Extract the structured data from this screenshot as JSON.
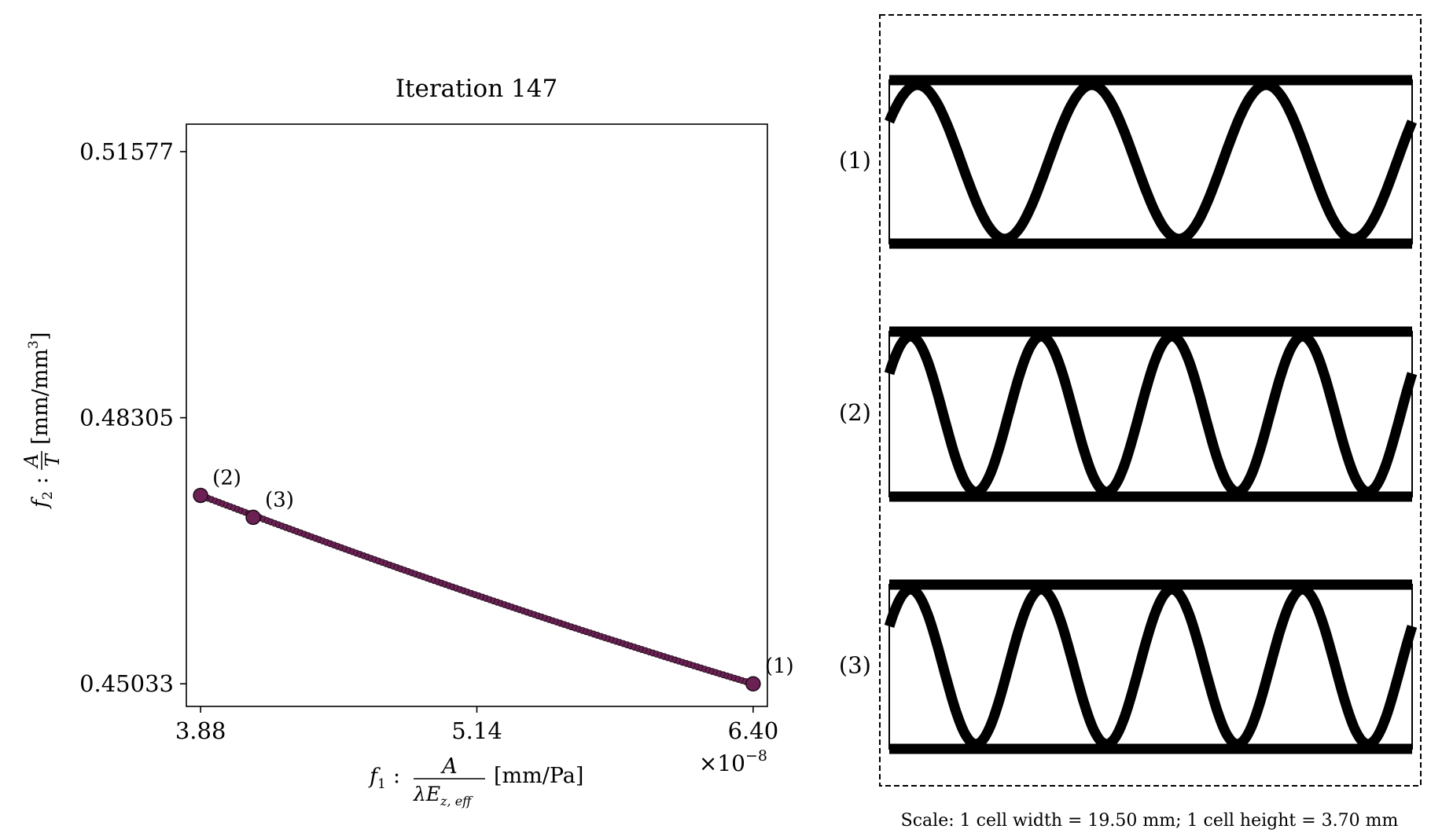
{
  "chart_data": {
    "type": "scatter",
    "title": "Iteration 147",
    "xlabel": {
      "prefix": "f",
      "sub": "1",
      "colon": ":",
      "frac_num": "A",
      "frac_den_lambda": "λE",
      "frac_den_sub": "z, eff",
      "unit": "[mm/Pa]"
    },
    "ylabel": {
      "prefix": "f",
      "sub": "2",
      "colon": ":",
      "frac_num": "A",
      "frac_den": "T",
      "unit": "[mm/mm",
      "unit_sup": "3",
      "unit_end": "]"
    },
    "x_ticks": [
      "3.88",
      "5.14",
      "6.40"
    ],
    "x_tick_values": [
      3.88,
      5.14,
      6.4
    ],
    "y_ticks": [
      "0.51577",
      "0.48305",
      "0.45033"
    ],
    "y_tick_values": [
      0.51577,
      0.48305,
      0.45033
    ],
    "x_multiplier": {
      "base": "×10",
      "exp": "−8"
    },
    "xlim": [
      3.815,
      6.465
    ],
    "ylim": [
      0.44755,
      0.51915
    ],
    "marker_color": "#6b2154",
    "marker_edge": "#1c0a16",
    "pareto_front": {
      "x_start": 3.88,
      "x_end": 6.4,
      "y_start": 0.4735,
      "y_end": 0.45033,
      "count": 150
    },
    "highlighted": [
      {
        "label": "(2)",
        "x": 3.88,
        "y": 0.4735
      },
      {
        "label": "(3)",
        "x": 4.12,
        "y": 0.4708
      },
      {
        "label": "(1)",
        "x": 6.4,
        "y": 0.45033
      }
    ]
  },
  "designs_panel": {
    "rows": [
      {
        "label": "(1)",
        "periods": 3
      },
      {
        "label": "(2)",
        "periods": 4
      },
      {
        "label": "(3)",
        "periods": 4
      }
    ],
    "scale_text": "Scale: 1 cell width = 19.50 mm; 1 cell height = 3.70 mm"
  }
}
